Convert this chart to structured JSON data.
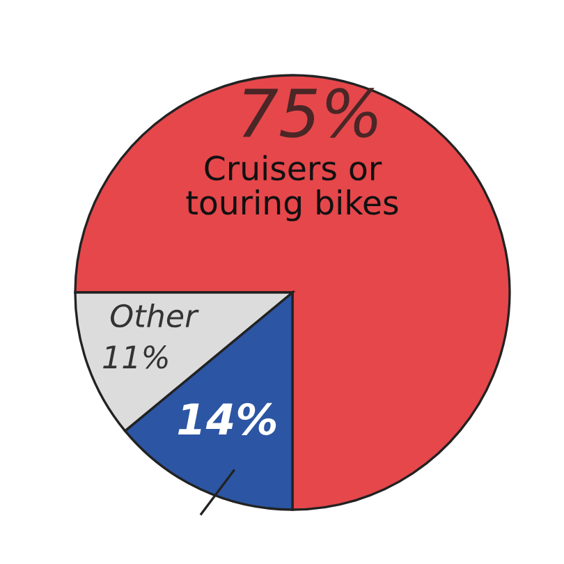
{
  "chart_data": {
    "type": "pie",
    "categories": [
      "Cruisers or\ntouring bikes",
      null,
      "Other"
    ],
    "values": [
      75,
      14,
      11
    ],
    "value_labels": [
      "75%",
      "14%",
      "11%"
    ],
    "colors": [
      "#e5474b",
      "#2c55a3",
      "#dcdcdc"
    ]
  }
}
